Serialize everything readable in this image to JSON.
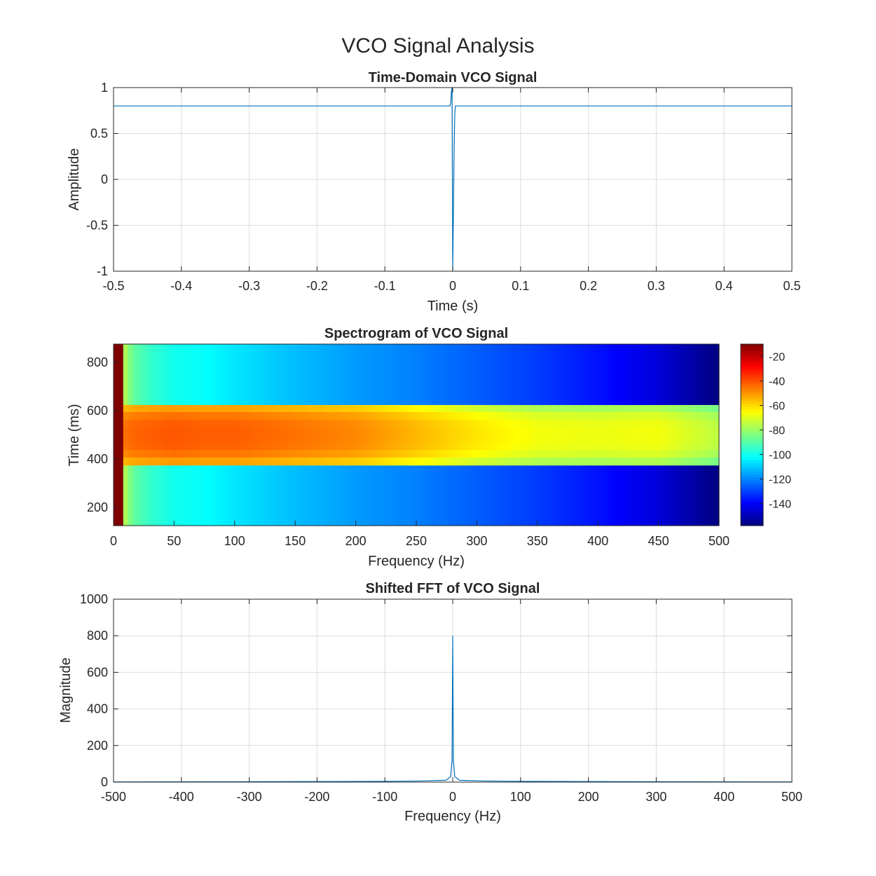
{
  "figure": {
    "title": "VCO Signal Analysis"
  },
  "chart_data": [
    {
      "type": "line",
      "title": "Time-Domain VCO Signal",
      "xlabel": "Time (s)",
      "ylabel": "Amplitude",
      "xlim": [
        -0.5,
        0.5
      ],
      "ylim": [
        -1,
        1
      ],
      "xticks": [
        -0.5,
        -0.4,
        -0.3,
        -0.2,
        -0.1,
        0,
        0.1,
        0.2,
        0.3,
        0.4,
        0.5
      ],
      "xtick_labels": [
        "-0.5",
        "-0.4",
        "-0.3",
        "-0.2",
        "-0.1",
        "0",
        "0.1",
        "0.2",
        "0.3",
        "0.4",
        "0.5"
      ],
      "yticks": [
        -1,
        -0.5,
        0,
        0.5,
        1
      ],
      "ytick_labels": [
        "-1",
        "-0.5",
        "0",
        "0.5",
        "1"
      ],
      "grid": true,
      "color": "#0072BD",
      "series": [
        {
          "x": [
            -0.5,
            -0.004,
            -0.003,
            -0.002,
            -0.001,
            0.0,
            0.001,
            0.002,
            0.003,
            0.004,
            0.005,
            0.5
          ],
          "y": [
            0.8,
            0.8,
            0.83,
            0.95,
            1.0,
            -1.0,
            -0.4,
            0.3,
            0.7,
            0.8,
            0.8,
            0.8
          ]
        }
      ]
    },
    {
      "type": "heatmap",
      "title": "Spectrogram of VCO Signal",
      "xlabel": "Frequency (Hz)",
      "ylabel": "Time (ms)",
      "xlim": [
        0,
        500
      ],
      "ylim": [
        125,
        875
      ],
      "xticks": [
        0,
        50,
        100,
        150,
        200,
        250,
        300,
        350,
        400,
        450,
        500
      ],
      "xtick_labels": [
        "0",
        "50",
        "100",
        "150",
        "200",
        "250",
        "300",
        "350",
        "400",
        "450",
        "500"
      ],
      "yticks": [
        200,
        400,
        600,
        800
      ],
      "ytick_labels": [
        "200",
        "400",
        "600",
        "800"
      ],
      "colormap": "jet",
      "clim": [
        -158,
        -10
      ],
      "colorbar_ticks": [
        -20,
        -40,
        -60,
        -80,
        -100,
        -120,
        -140
      ],
      "colorbar_tick_labels": [
        "-20",
        "-40",
        "-60",
        "-80",
        "-100",
        "-120",
        "-140"
      ],
      "time_bands_ms": [
        [
          125,
          375
        ],
        [
          375,
          625
        ],
        [
          625,
          875
        ]
      ],
      "freq_hz": [
        0,
        8,
        16,
        30,
        50,
        75,
        100,
        150,
        200,
        250,
        300,
        350,
        400,
        450,
        500
      ],
      "power_db": [
        [
          -10,
          -75,
          -88,
          -95,
          -100,
          -102,
          -106,
          -112,
          -117,
          -121,
          -126,
          -131,
          -137,
          -145,
          -158
        ],
        [
          -10,
          -45,
          -43,
          -42,
          -41,
          -42,
          -42,
          -45,
          -48,
          -55,
          -62,
          -67,
          -68,
          -67,
          -75
        ],
        [
          -10,
          -75,
          -88,
          -95,
          -100,
          -102,
          -106,
          -112,
          -117,
          -121,
          -126,
          -131,
          -137,
          -145,
          -158
        ]
      ]
    },
    {
      "type": "line",
      "title": "Shifted FFT of VCO Signal",
      "xlabel": "Frequency (Hz)",
      "ylabel": "Magnitude",
      "xlim": [
        -500,
        500
      ],
      "ylim": [
        0,
        1000
      ],
      "xticks": [
        -500,
        -400,
        -300,
        -200,
        -100,
        0,
        100,
        200,
        300,
        400,
        500
      ],
      "xtick_labels": [
        "-500",
        "-400",
        "-300",
        "-200",
        "-100",
        "0",
        "100",
        "200",
        "300",
        "400",
        "500"
      ],
      "yticks": [
        0,
        200,
        400,
        600,
        800,
        1000
      ],
      "ytick_labels": [
        "0",
        "200",
        "400",
        "600",
        "800",
        "1000"
      ],
      "grid": true,
      "color": "#0072BD",
      "series": [
        {
          "x": [
            -500,
            -400,
            -300,
            -200,
            -100,
            -50,
            -10,
            -3,
            -1,
            0,
            1,
            3,
            10,
            50,
            100,
            200,
            300,
            400,
            500
          ],
          "y": [
            1,
            1.5,
            2,
            3,
            4,
            6,
            10,
            30,
            120,
            800,
            120,
            30,
            10,
            6,
            4,
            3,
            2,
            1.5,
            1
          ]
        }
      ]
    }
  ]
}
